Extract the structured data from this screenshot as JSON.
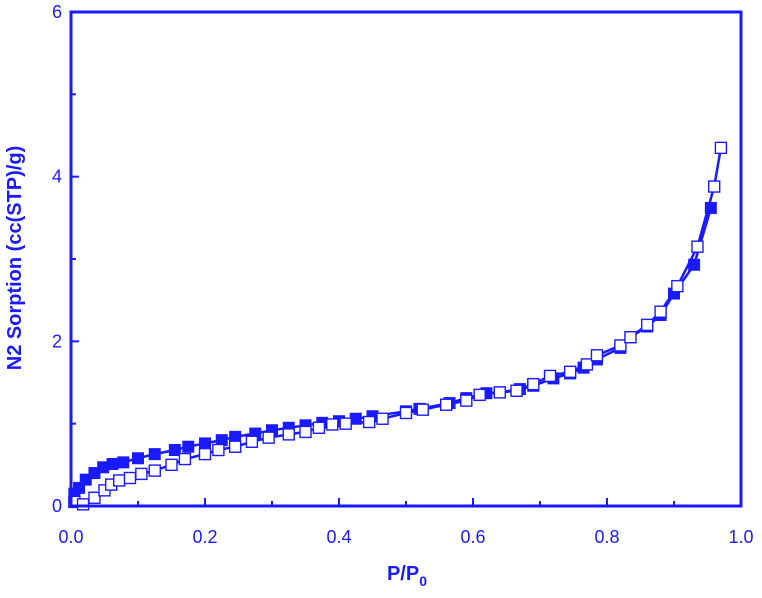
{
  "chart_data": {
    "type": "scatter",
    "xlabel": "P/P",
    "xlabel_subscript": "0",
    "ylabel": "N2 Sorption (cc(STP)/g)",
    "xlim": [
      0.0,
      1.0
    ],
    "ylim": [
      0,
      6
    ],
    "x_ticks": [
      "0.0",
      "0.2",
      "0.4",
      "0.6",
      "0.8",
      "1.0"
    ],
    "y_ticks": [
      "0",
      "2",
      "4",
      "6"
    ],
    "grid": false,
    "legend": "none",
    "color": "#1a1aff",
    "series": [
      {
        "marker": "filled-square",
        "points": [
          [
            0.005,
            0.15
          ],
          [
            0.012,
            0.22
          ],
          [
            0.022,
            0.32
          ],
          [
            0.035,
            0.4
          ],
          [
            0.048,
            0.47
          ],
          [
            0.062,
            0.51
          ],
          [
            0.078,
            0.53
          ],
          [
            0.1,
            0.58
          ],
          [
            0.125,
            0.63
          ],
          [
            0.155,
            0.68
          ],
          [
            0.175,
            0.72
          ],
          [
            0.2,
            0.76
          ],
          [
            0.225,
            0.8
          ],
          [
            0.245,
            0.84
          ],
          [
            0.275,
            0.88
          ],
          [
            0.3,
            0.92
          ],
          [
            0.325,
            0.95
          ],
          [
            0.35,
            0.98
          ],
          [
            0.375,
            1.01
          ],
          [
            0.4,
            1.03
          ],
          [
            0.425,
            1.06
          ],
          [
            0.45,
            1.09
          ],
          [
            0.5,
            1.15
          ],
          [
            0.52,
            1.18
          ],
          [
            0.565,
            1.25
          ],
          [
            0.59,
            1.31
          ],
          [
            0.62,
            1.37
          ],
          [
            0.64,
            1.38
          ],
          [
            0.67,
            1.42
          ],
          [
            0.69,
            1.46
          ],
          [
            0.72,
            1.55
          ],
          [
            0.745,
            1.61
          ],
          [
            0.765,
            1.68
          ],
          [
            0.785,
            1.78
          ],
          [
            0.82,
            1.92
          ],
          [
            0.835,
            2.05
          ],
          [
            0.86,
            2.18
          ],
          [
            0.88,
            2.32
          ],
          [
            0.9,
            2.58
          ],
          [
            0.93,
            2.93
          ],
          [
            0.955,
            3.62
          ]
        ]
      },
      {
        "marker": "open-square",
        "points": [
          [
            0.005,
            0.05
          ],
          [
            0.018,
            0.02
          ],
          [
            0.035,
            0.1
          ],
          [
            0.05,
            0.19
          ],
          [
            0.06,
            0.26
          ],
          [
            0.072,
            0.31
          ],
          [
            0.088,
            0.34
          ],
          [
            0.105,
            0.39
          ],
          [
            0.125,
            0.43
          ],
          [
            0.15,
            0.5
          ],
          [
            0.17,
            0.57
          ],
          [
            0.2,
            0.63
          ],
          [
            0.22,
            0.68
          ],
          [
            0.245,
            0.72
          ],
          [
            0.27,
            0.78
          ],
          [
            0.295,
            0.83
          ],
          [
            0.325,
            0.87
          ],
          [
            0.35,
            0.9
          ],
          [
            0.37,
            0.95
          ],
          [
            0.39,
            0.99
          ],
          [
            0.41,
            1.0
          ],
          [
            0.445,
            1.02
          ],
          [
            0.465,
            1.06
          ],
          [
            0.5,
            1.13
          ],
          [
            0.525,
            1.17
          ],
          [
            0.56,
            1.23
          ],
          [
            0.59,
            1.28
          ],
          [
            0.61,
            1.35
          ],
          [
            0.64,
            1.38
          ],
          [
            0.665,
            1.4
          ],
          [
            0.69,
            1.48
          ],
          [
            0.715,
            1.58
          ],
          [
            0.745,
            1.63
          ],
          [
            0.77,
            1.72
          ],
          [
            0.785,
            1.83
          ],
          [
            0.82,
            1.95
          ],
          [
            0.835,
            2.05
          ],
          [
            0.86,
            2.2
          ],
          [
            0.88,
            2.36
          ],
          [
            0.905,
            2.67
          ],
          [
            0.935,
            3.15
          ],
          [
            0.96,
            3.88
          ],
          [
            0.97,
            4.35
          ]
        ]
      }
    ]
  }
}
